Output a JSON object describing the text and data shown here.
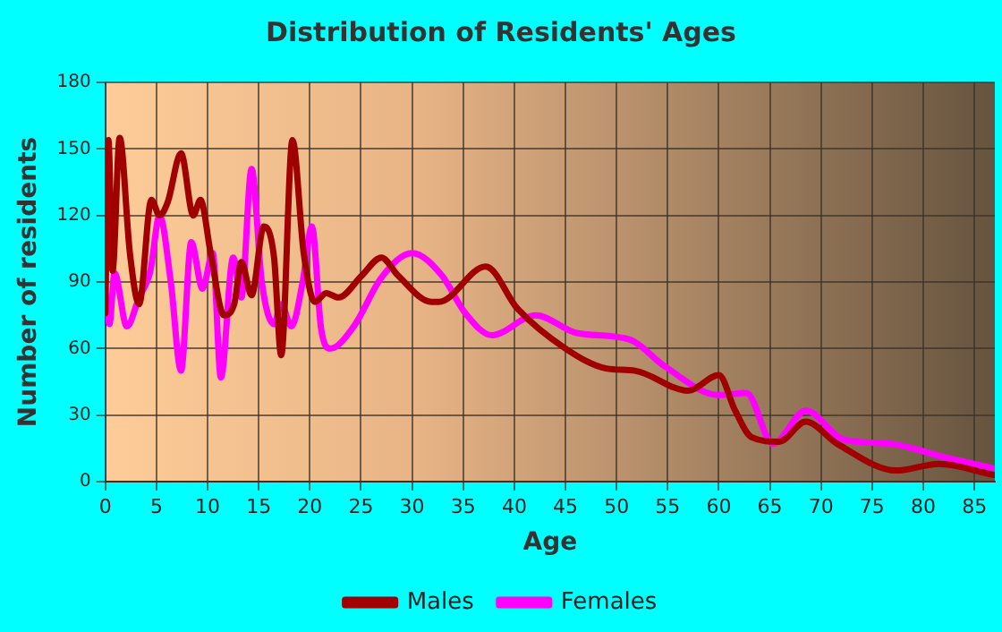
{
  "chart_data": {
    "type": "line",
    "title": "Distribution of Residents' Ages",
    "xlabel": "Age",
    "ylabel": "Number of residents",
    "xlim": [
      0,
      87
    ],
    "xticks": [
      0,
      5,
      10,
      15,
      20,
      25,
      30,
      35,
      40,
      45,
      50,
      55,
      60,
      65,
      70,
      75,
      80,
      85
    ],
    "ylim": [
      0,
      180
    ],
    "yticks": [
      0,
      30,
      60,
      90,
      120,
      150,
      180
    ],
    "grid": true,
    "legend": "bottom",
    "marker": "none",
    "line_style": "solid",
    "series": [
      {
        "name": "Males",
        "color": "#a00000",
        "x": [
          0,
          0.3,
          0.7,
          1.4,
          2.4,
          3.3,
          4.5,
          5.3,
          6.1,
          7.4,
          8.6,
          9.3,
          10.3,
          11.6,
          12.6,
          13.3,
          14.3,
          15.5,
          16.5,
          17.2,
          18.3,
          19.4,
          20.5,
          21.6,
          22.8,
          25.1,
          27,
          28.6,
          31.9,
          32.6,
          37.2,
          40.3,
          45,
          49,
          51.8,
          57,
          60,
          61.6,
          63.2,
          65.9,
          68.5,
          71.6,
          77.4,
          81.5,
          86.9
        ],
        "values": [
          76,
          154,
          95,
          155,
          103,
          80,
          127,
          120,
          126,
          148,
          120,
          127,
          103,
          75,
          80,
          99,
          84,
          115,
          101,
          57,
          154,
          103,
          81,
          85,
          83,
          93,
          101,
          93,
          81,
          81,
          97,
          78,
          60,
          51,
          50,
          41,
          48,
          32,
          20,
          18,
          27,
          17,
          5,
          8,
          3
        ]
      },
      {
        "name": "Females",
        "color": "#ff00ff",
        "x": [
          0,
          0.4,
          0.9,
          2.1,
          3.3,
          4.4,
          5.3,
          6.4,
          7.4,
          8.4,
          9.5,
          10.5,
          11.3,
          12.5,
          13.3,
          14.3,
          15.3,
          16.5,
          17.2,
          18.2,
          19.3,
          20.2,
          21.1,
          22,
          24.3,
          27,
          30,
          32.9,
          35.2,
          37.8,
          42.1,
          46.1,
          51.3,
          54.7,
          60,
          62.7,
          65.3,
          68.5,
          72.2,
          76.9,
          82.1,
          86.9
        ],
        "values": [
          85,
          71,
          94,
          70,
          83,
          95,
          120,
          90,
          50,
          108,
          87,
          103,
          47,
          101,
          83,
          141,
          90,
          71,
          80,
          70,
          90,
          115,
          69,
          60,
          70,
          92,
          103,
          93,
          76,
          66,
          75,
          67,
          64,
          52,
          39,
          40,
          17,
          32,
          19,
          17,
          11,
          6
        ]
      }
    ]
  }
}
